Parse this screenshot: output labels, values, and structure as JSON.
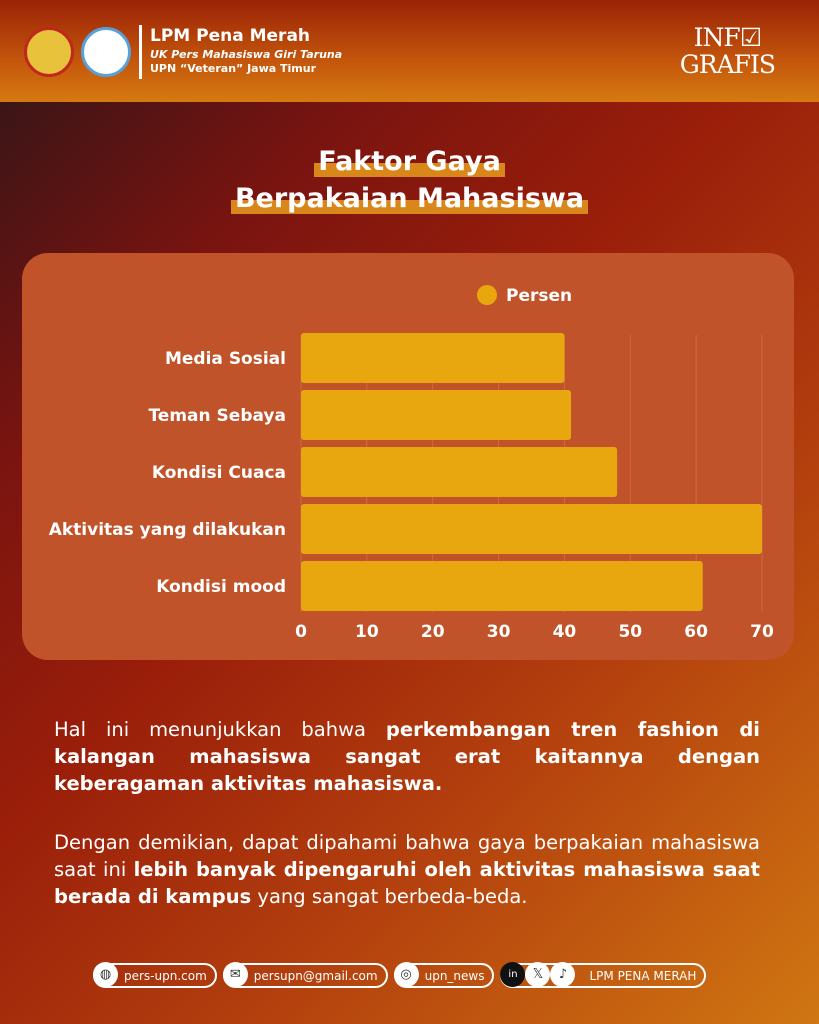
{
  "header": {
    "org_name": "LPM Pena Merah",
    "sub1": "UK Pers Mahasiswa Giri Taruna",
    "sub2": "UPN “Veteran” Jawa Timur",
    "badge_line1": "INF",
    "badge_line2": "GRAFIS"
  },
  "title_line1": "Faktor Gaya",
  "title_line2": "Berpakaian Mahasiswa",
  "chart_data": {
    "type": "bar",
    "orientation": "horizontal",
    "categories": [
      "Media Sosial",
      "Teman Sebaya",
      "Kondisi Cuaca",
      "Aktivitas yang dilakukan",
      "Kondisi mood"
    ],
    "series": [
      {
        "name": "Persen",
        "values": [
          40,
          41,
          48,
          70,
          61
        ]
      }
    ],
    "xlim": [
      0,
      70
    ],
    "xticks": [
      0,
      10,
      20,
      30,
      40,
      50,
      60,
      70
    ],
    "grid": true,
    "legend": "top",
    "bar_color": "#e8a70f"
  },
  "para1": {
    "a": "Hal ini menunjukkan bahwa ",
    "b": "perkembangan tren fashion di kalangan mahasiswa sangat erat kaitannya dengan keberagaman aktivitas mahasiswa."
  },
  "para2": {
    "a": "Dengan demikian, dapat dipahami bahwa gaya berpakaian mahasiswa saat ini ",
    "b": "lebih banyak dipengaruhi oleh aktivitas mahasiswa saat berada di kampus",
    "c": " yang sangat berbeda-beda."
  },
  "footer": {
    "website": "pers-upn.com",
    "email": "persupn@gmail.com",
    "instagram": "upn_news",
    "social": "LPM PENA MERAH"
  }
}
